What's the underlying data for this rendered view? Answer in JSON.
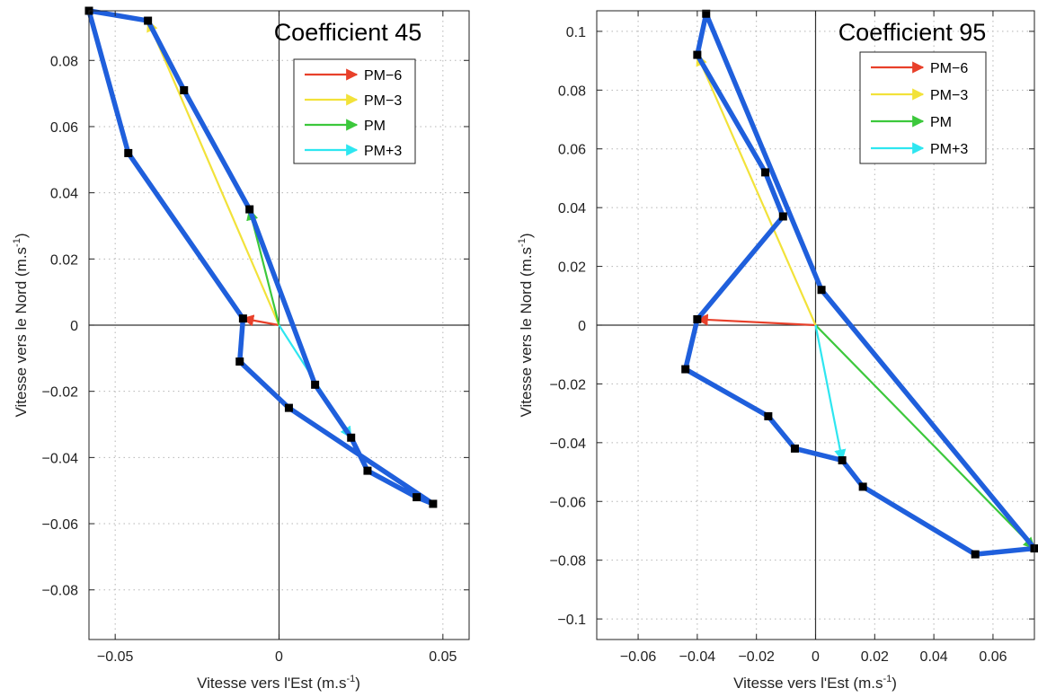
{
  "chart_data": [
    {
      "type": "line",
      "title": "Coefficient 45",
      "xlabel": "Vitesse vers l'Est (m.s",
      "ylabel": "Vitesse vers le Nord (m.s",
      "unit_exponent": "-1",
      "unit_close": ")",
      "xlim": [
        -0.058,
        0.058
      ],
      "ylim": [
        -0.095,
        0.095
      ],
      "xticks": [
        -0.05,
        0,
        0.05
      ],
      "xtick_labels": [
        "-0.05",
        "0",
        "0.05"
      ],
      "yticks": [
        -0.08,
        -0.06,
        -0.04,
        -0.02,
        0,
        0.02,
        0.04,
        0.06,
        0.08
      ],
      "ytick_labels": [
        "-0.08",
        "-0.06",
        "-0.04",
        "-0.02",
        "0",
        "0.02",
        "0.04",
        "0.06",
        "0.08"
      ],
      "grid": true,
      "legend_position": "top-right",
      "hodograph": {
        "color": "#1f5fdc",
        "x": [
          -0.058,
          -0.04,
          -0.029,
          -0.009,
          0.011,
          0.022,
          0.027,
          0.042,
          0.047,
          0.003,
          -0.012,
          -0.011,
          -0.046,
          -0.058
        ],
        "y": [
          0.095,
          0.092,
          0.071,
          0.035,
          -0.018,
          -0.034,
          -0.044,
          -0.052,
          -0.054,
          -0.025,
          -0.011,
          0.002,
          0.052,
          0.095
        ]
      },
      "vectors": [
        {
          "name": "PM−6",
          "color": "#e8402a",
          "x": -0.011,
          "y": 0.002
        },
        {
          "name": "PM−3",
          "color": "#f2e23a",
          "x": -0.04,
          "y": 0.092
        },
        {
          "name": "PM",
          "color": "#3cc83c",
          "x": -0.009,
          "y": 0.035
        },
        {
          "name": "PM+3",
          "color": "#2ee6f0",
          "x": 0.022,
          "y": -0.034
        }
      ]
    },
    {
      "type": "line",
      "title": "Coefficient 95",
      "xlabel": "Vitesse vers l'Est (m.s",
      "ylabel": "Vitesse vers le Nord (m.s",
      "unit_exponent": "-1",
      "unit_close": ")",
      "xlim": [
        -0.074,
        0.074
      ],
      "ylim": [
        -0.107,
        0.107
      ],
      "xticks": [
        -0.06,
        -0.04,
        -0.02,
        0,
        0.02,
        0.04,
        0.06
      ],
      "xtick_labels": [
        "-0.06",
        "-0.04",
        "-0.02",
        "0",
        "0.02",
        "0.04",
        "0.06"
      ],
      "yticks": [
        -0.1,
        -0.08,
        -0.06,
        -0.04,
        -0.02,
        0,
        0.02,
        0.04,
        0.06,
        0.08,
        0.1
      ],
      "ytick_labels": [
        "-0.1",
        "-0.08",
        "-0.06",
        "-0.04",
        "-0.02",
        "0",
        "0.02",
        "0.04",
        "0.06",
        "0.08",
        "0.1"
      ],
      "grid": true,
      "legend_position": "top-right",
      "hodograph": {
        "color": "#1f5fdc",
        "x": [
          -0.037,
          -0.04,
          -0.017,
          -0.011,
          -0.04,
          -0.044,
          -0.016,
          -0.007,
          0.009,
          0.016,
          0.054,
          0.074,
          0.002,
          -0.037
        ],
        "y": [
          0.106,
          0.092,
          0.052,
          0.037,
          0.002,
          -0.015,
          -0.031,
          -0.042,
          -0.046,
          -0.055,
          -0.078,
          -0.076,
          0.012,
          0.106
        ]
      },
      "vectors": [
        {
          "name": "PM−6",
          "color": "#e8402a",
          "x": -0.04,
          "y": 0.002
        },
        {
          "name": "PM−3",
          "color": "#f2e23a",
          "x": -0.04,
          "y": 0.092
        },
        {
          "name": "PM",
          "color": "#3cc83c",
          "x": 0.074,
          "y": -0.076
        },
        {
          "name": "PM+3",
          "color": "#2ee6f0",
          "x": 0.009,
          "y": -0.046
        }
      ]
    }
  ]
}
